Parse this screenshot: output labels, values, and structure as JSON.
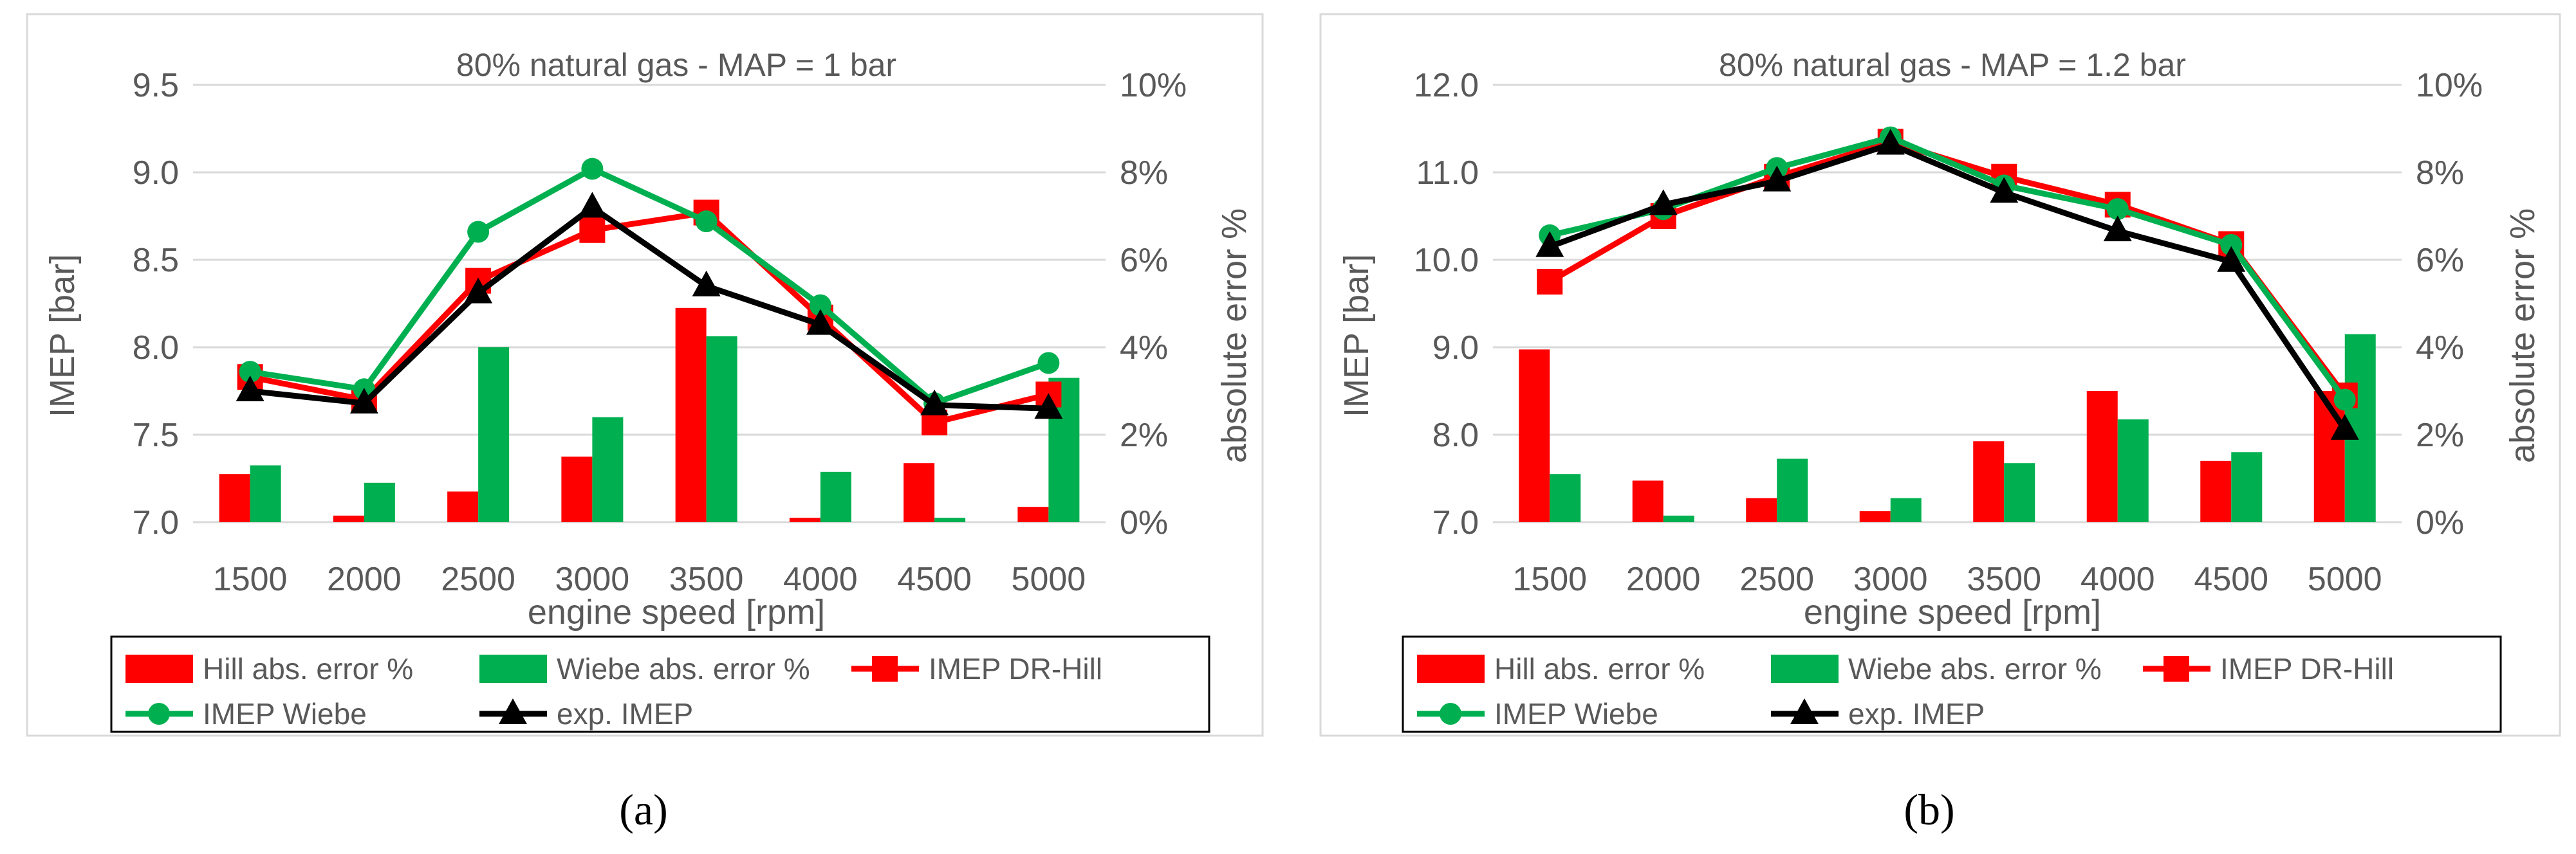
{
  "chart_data": [
    {
      "type": "bar+line",
      "title": "80% natural gas - MAP = 1 bar",
      "panel_label": "(a)",
      "xlabel": "engine speed [rpm]",
      "ylabel_left": "IMEP [bar]",
      "ylabel_right": "absolute error %",
      "categories": [
        "1500",
        "2000",
        "2500",
        "3000",
        "3500",
        "4000",
        "4500",
        "5000"
      ],
      "ylim_left": [
        7.0,
        9.5
      ],
      "yticks_left": [
        "7.0",
        "7.5",
        "8.0",
        "8.5",
        "9.0",
        "9.5"
      ],
      "ylim_right": [
        0,
        10
      ],
      "yticks_right": [
        "0%",
        "2%",
        "4%",
        "6%",
        "8%",
        "10%"
      ],
      "grid": "horizontal",
      "legend_position": "bottom",
      "bar_series": [
        {
          "name": "Hill abs. error %",
          "color": "#ff0000",
          "values": [
            1.1,
            0.15,
            0.7,
            1.5,
            4.9,
            0.1,
            1.35,
            0.35
          ]
        },
        {
          "name": "Wiebe abs. error %",
          "color": "#00b050",
          "values": [
            1.3,
            0.9,
            4.0,
            2.4,
            4.25,
            1.15,
            0.1,
            3.3
          ]
        }
      ],
      "line_series": [
        {
          "name": "IMEP DR-Hill",
          "color": "#ff0000",
          "marker": "square",
          "values": [
            7.83,
            7.7,
            8.38,
            8.67,
            8.77,
            8.17,
            7.57,
            7.73
          ]
        },
        {
          "name": "IMEP Wiebe",
          "color": "#00b050",
          "marker": "circle",
          "values": [
            7.86,
            7.76,
            8.66,
            9.02,
            8.72,
            8.24,
            7.68,
            7.91
          ]
        },
        {
          "name": "exp. IMEP",
          "color": "#000000",
          "marker": "triangle",
          "values": [
            7.75,
            7.68,
            8.31,
            8.8,
            8.35,
            8.13,
            7.67,
            7.65
          ]
        }
      ]
    },
    {
      "type": "bar+line",
      "title": "80% natural gas - MAP = 1.2 bar",
      "panel_label": "(b)",
      "xlabel": "engine speed [rpm]",
      "ylabel_left": "IMEP [bar]",
      "ylabel_right": "absolute error %",
      "categories": [
        "1500",
        "2000",
        "2500",
        "3000",
        "3500",
        "4000",
        "4500",
        "5000"
      ],
      "ylim_left": [
        7.0,
        12.0
      ],
      "yticks_left": [
        "7.0",
        "8.0",
        "9.0",
        "10.0",
        "11.0",
        "12.0"
      ],
      "ylim_right": [
        0,
        10
      ],
      "yticks_right": [
        "0%",
        "2%",
        "4%",
        "6%",
        "8%",
        "10%"
      ],
      "grid": "horizontal",
      "legend_position": "bottom",
      "bar_series": [
        {
          "name": "Hill abs. error %",
          "color": "#ff0000",
          "values": [
            3.95,
            0.95,
            0.55,
            0.25,
            1.85,
            3.0,
            1.4,
            3.0
          ]
        },
        {
          "name": "Wiebe abs. error %",
          "color": "#00b050",
          "values": [
            1.1,
            0.15,
            1.45,
            0.55,
            1.35,
            2.35,
            1.6,
            4.3
          ]
        }
      ],
      "line_series": [
        {
          "name": "IMEP DR-Hill",
          "color": "#ff0000",
          "marker": "square",
          "values": [
            9.75,
            10.5,
            10.95,
            11.35,
            10.95,
            10.63,
            10.18,
            8.45
          ]
        },
        {
          "name": "IMEP Wiebe",
          "color": "#00b050",
          "marker": "circle",
          "values": [
            10.28,
            10.58,
            11.05,
            11.4,
            10.85,
            10.58,
            10.17,
            8.4
          ]
        },
        {
          "name": "exp. IMEP",
          "color": "#000000",
          "marker": "triangle",
          "values": [
            10.15,
            10.63,
            10.9,
            11.32,
            10.77,
            10.33,
            9.98,
            8.06
          ]
        }
      ]
    }
  ]
}
